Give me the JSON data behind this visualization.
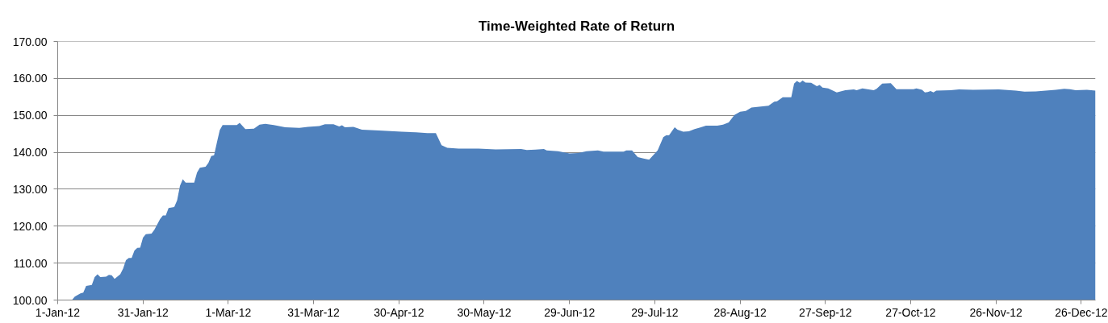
{
  "chart_data": {
    "type": "area",
    "title": "Time-Weighted Rate of Return",
    "color": "#4f81bd",
    "grid": "y",
    "xlim": [
      "2012-01-01",
      "2012-12-31"
    ],
    "xticks": [
      {
        "value": "2012-01-01",
        "label": "1-Jan-12"
      },
      {
        "value": "2012-01-31",
        "label": "31-Jan-12"
      },
      {
        "value": "2012-03-01",
        "label": "1-Mar-12"
      },
      {
        "value": "2012-03-31",
        "label": "31-Mar-12"
      },
      {
        "value": "2012-04-30",
        "label": "30-Apr-12"
      },
      {
        "value": "2012-05-30",
        "label": "30-May-12"
      },
      {
        "value": "2012-06-29",
        "label": "29-Jun-12"
      },
      {
        "value": "2012-07-29",
        "label": "29-Jul-12"
      },
      {
        "value": "2012-08-28",
        "label": "28-Aug-12"
      },
      {
        "value": "2012-09-27",
        "label": "27-Sep-12"
      },
      {
        "value": "2012-10-27",
        "label": "27-Oct-12"
      },
      {
        "value": "2012-11-26",
        "label": "26-Nov-12"
      },
      {
        "value": "2012-12-26",
        "label": "26-Dec-12"
      }
    ],
    "ylim": [
      100,
      170
    ],
    "yticks": [
      {
        "value": 100,
        "label": "100.00"
      },
      {
        "value": 110,
        "label": "110.00"
      },
      {
        "value": 120,
        "label": "120.00"
      },
      {
        "value": 130,
        "label": "130.00"
      },
      {
        "value": 140,
        "label": "140.00"
      },
      {
        "value": 150,
        "label": "150.00"
      },
      {
        "value": 160,
        "label": "160.00"
      },
      {
        "value": 170,
        "label": "170.00"
      }
    ],
    "x": [
      "2012-01-01",
      "2012-01-04",
      "2012-01-06",
      "2012-01-07",
      "2012-01-09",
      "2012-01-10",
      "2012-01-11",
      "2012-01-13",
      "2012-01-14",
      "2012-01-15",
      "2012-01-16",
      "2012-01-18",
      "2012-01-19",
      "2012-01-20",
      "2012-01-21",
      "2012-01-23",
      "2012-01-24",
      "2012-01-25",
      "2012-01-26",
      "2012-01-27",
      "2012-01-28",
      "2012-01-29",
      "2012-01-30",
      "2012-01-31",
      "2012-02-01",
      "2012-02-03",
      "2012-02-04",
      "2012-02-06",
      "2012-02-07",
      "2012-02-08",
      "2012-02-09",
      "2012-02-11",
      "2012-02-12",
      "2012-02-13",
      "2012-02-14",
      "2012-02-15",
      "2012-02-18",
      "2012-02-19",
      "2012-02-20",
      "2012-02-22",
      "2012-02-23",
      "2012-02-24",
      "2012-02-25",
      "2012-02-26",
      "2012-02-27",
      "2012-02-28",
      "2012-03-04",
      "2012-03-05",
      "2012-03-07",
      "2012-03-10",
      "2012-03-12",
      "2012-03-14",
      "2012-03-17",
      "2012-03-21",
      "2012-03-26",
      "2012-03-29",
      "2012-04-02",
      "2012-04-04",
      "2012-04-07",
      "2012-04-09",
      "2012-04-10",
      "2012-04-11",
      "2012-04-14",
      "2012-04-17",
      "2012-04-23",
      "2012-05-01",
      "2012-05-06",
      "2012-05-10",
      "2012-05-13",
      "2012-05-15",
      "2012-05-17",
      "2012-05-21",
      "2012-05-28",
      "2012-06-03",
      "2012-06-12",
      "2012-06-14",
      "2012-06-17",
      "2012-06-20",
      "2012-06-21",
      "2012-06-25",
      "2012-06-29",
      "2012-07-02",
      "2012-07-05",
      "2012-07-09",
      "2012-07-11",
      "2012-07-18",
      "2012-07-19",
      "2012-07-21",
      "2012-07-23",
      "2012-07-25",
      "2012-07-27",
      "2012-07-30",
      "2012-08-01",
      "2012-08-02",
      "2012-08-03",
      "2012-08-05",
      "2012-08-06",
      "2012-08-08",
      "2012-08-10",
      "2012-08-12",
      "2012-08-14",
      "2012-08-16",
      "2012-08-20",
      "2012-08-22",
      "2012-08-24",
      "2012-08-26",
      "2012-08-28",
      "2012-08-30",
      "2012-09-01",
      "2012-09-03",
      "2012-09-07",
      "2012-09-09",
      "2012-09-10",
      "2012-09-12",
      "2012-09-15",
      "2012-09-16",
      "2012-09-17",
      "2012-09-18",
      "2012-09-19",
      "2012-09-20",
      "2012-09-22",
      "2012-09-24",
      "2012-09-25",
      "2012-09-26",
      "2012-09-28",
      "2012-10-01",
      "2012-10-04",
      "2012-10-07",
      "2012-10-08",
      "2012-10-10",
      "2012-10-14",
      "2012-10-15",
      "2012-10-17",
      "2012-10-20",
      "2012-10-22",
      "2012-10-28",
      "2012-10-29",
      "2012-10-31",
      "2012-11-01",
      "2012-11-02",
      "2012-11-03",
      "2012-11-04",
      "2012-11-05",
      "2012-11-10",
      "2012-11-13",
      "2012-11-18",
      "2012-11-27",
      "2012-12-03",
      "2012-12-06",
      "2012-12-10",
      "2012-12-17",
      "2012-12-20",
      "2012-12-22",
      "2012-12-24",
      "2012-12-28",
      "2012-12-31"
    ],
    "values": [
      100.0,
      100.0,
      100.0,
      100.9,
      101.8,
      102.0,
      103.8,
      104.1,
      106.2,
      107.0,
      106.2,
      106.3,
      106.8,
      106.7,
      105.7,
      107.0,
      108.5,
      110.8,
      111.4,
      111.4,
      113.4,
      114.1,
      114.2,
      116.9,
      117.8,
      118.0,
      119.0,
      121.9,
      122.9,
      122.9,
      124.9,
      125.2,
      127.0,
      130.9,
      132.7,
      131.8,
      131.8,
      134.5,
      135.8,
      136.1,
      137.1,
      139.0,
      139.2,
      142.7,
      146.0,
      147.4,
      147.4,
      148.0,
      146.3,
      146.4,
      147.5,
      147.7,
      147.4,
      146.8,
      146.6,
      146.9,
      147.1,
      147.6,
      147.6,
      147.0,
      147.3,
      146.8,
      146.9,
      146.1,
      145.9,
      145.6,
      145.4,
      145.2,
      145.2,
      141.9,
      141.2,
      141.0,
      141.0,
      140.8,
      140.9,
      140.6,
      140.7,
      140.9,
      140.5,
      140.3,
      139.7,
      139.8,
      140.3,
      140.5,
      140.2,
      140.2,
      140.5,
      140.5,
      138.7,
      138.3,
      138.0,
      140.5,
      144.1,
      144.6,
      144.6,
      146.8,
      146.1,
      145.6,
      145.7,
      146.3,
      146.7,
      147.2,
      147.2,
      147.5,
      148.1,
      150.1,
      151.0,
      151.2,
      152.1,
      152.3,
      152.6,
      153.7,
      153.8,
      154.9,
      154.9,
      158.6,
      159.3,
      158.8,
      159.4,
      158.9,
      158.8,
      157.9,
      158.2,
      157.5,
      157.3,
      156.2,
      156.8,
      157.0,
      156.8,
      157.3,
      156.8,
      157.2,
      158.6,
      158.7,
      157.1,
      157.1,
      157.3,
      156.9,
      156.2,
      156.3,
      156.6,
      156.2,
      156.7,
      156.8,
      157.0,
      156.9,
      157.0,
      156.7,
      156.4,
      156.5,
      156.9,
      157.2,
      157.1,
      156.8,
      156.9,
      156.7
    ]
  }
}
